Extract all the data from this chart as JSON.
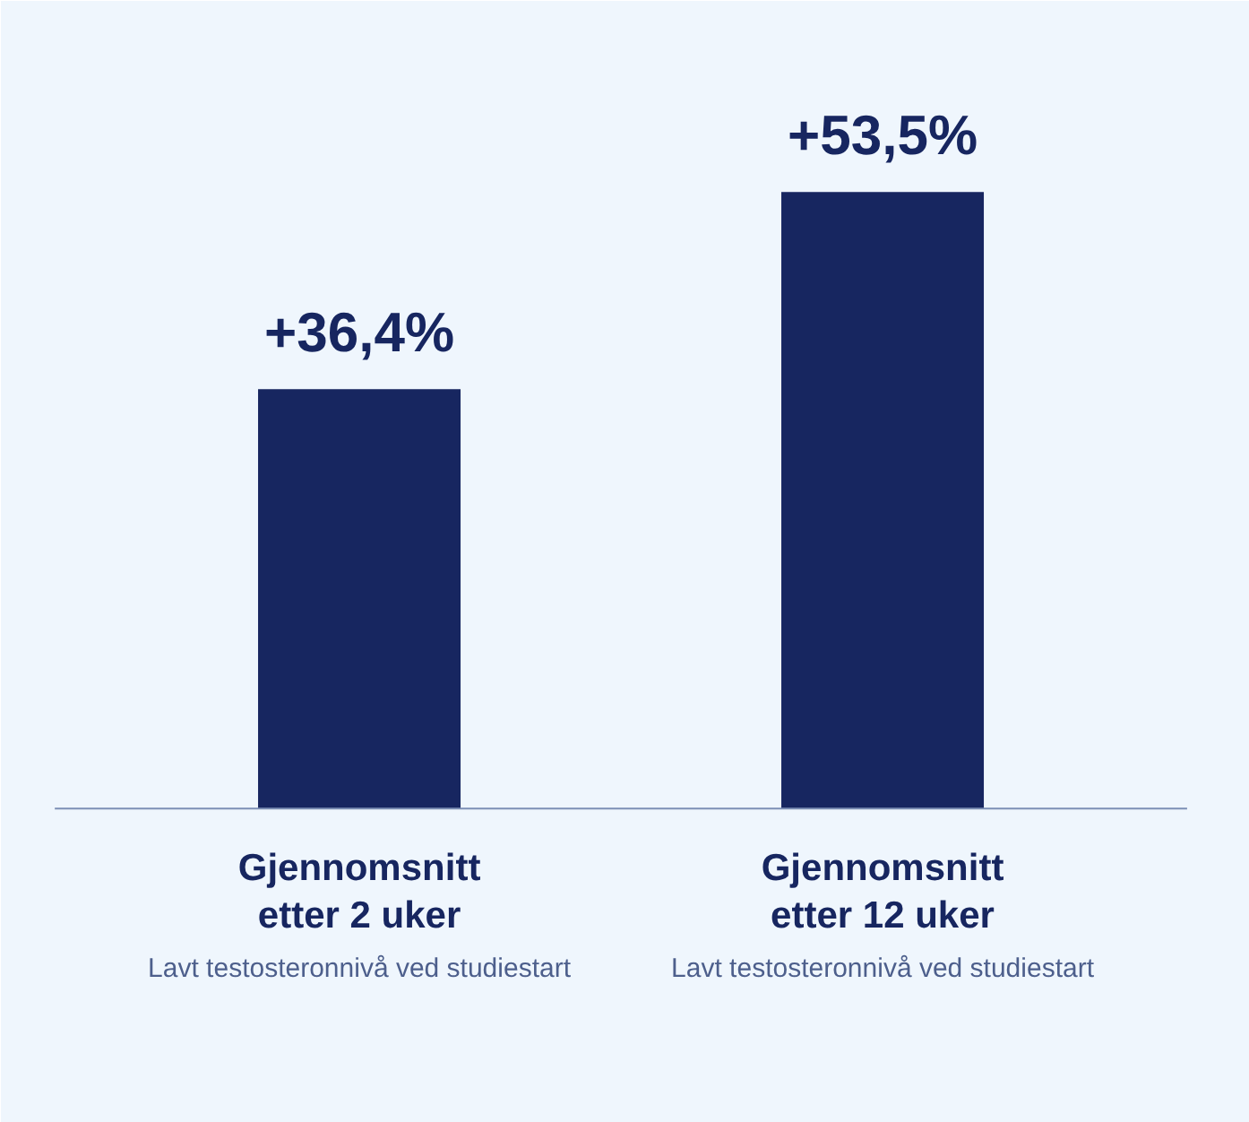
{
  "chart_data": {
    "type": "bar",
    "categories": [
      "Gjennomsnitt\netter 2 uker",
      "Gjennomsnitt\netter 12 uker"
    ],
    "values": [
      36.4,
      53.5
    ],
    "color": "#172660",
    "value_labels": [
      "+36,4%",
      "+53,5%"
    ],
    "annotations": [
      "Lavt testosteronnivå ved studiestart",
      "Lavt testosteronnivå ved studiestart"
    ],
    "grid": false
  }
}
